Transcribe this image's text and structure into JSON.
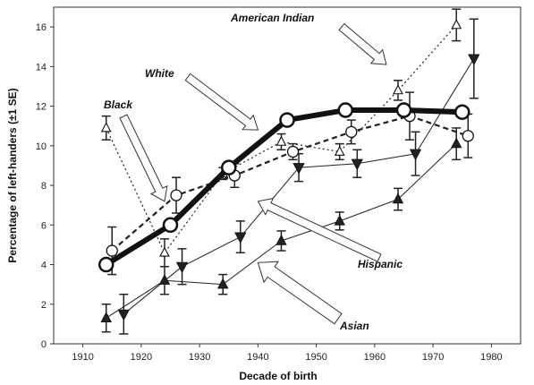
{
  "chart_data": {
    "type": "line",
    "xlabel": "Decade of birth",
    "ylabel": "Percentage of left-handers (±1 SE)",
    "xlim": [
      1905,
      1985
    ],
    "ylim": [
      0,
      17
    ],
    "x_ticks": [
      1910,
      1920,
      1930,
      1940,
      1950,
      1960,
      1970,
      1980
    ],
    "y_ticks": [
      0,
      2,
      4,
      6,
      8,
      10,
      12,
      14,
      16
    ],
    "grid": false,
    "legend": "none (series labelled by annotations with arrows)",
    "series": [
      {
        "name": "White",
        "style": "thick solid line, large open circles",
        "color": "#111111",
        "points": [
          {
            "x": 1914,
            "y": 4.0,
            "err": 0.2
          },
          {
            "x": 1925,
            "y": 6.0,
            "err": 0.2
          },
          {
            "x": 1935,
            "y": 8.9,
            "err": 0.2
          },
          {
            "x": 1945,
            "y": 11.3,
            "err": 0.15
          },
          {
            "x": 1955,
            "y": 11.8,
            "err": 0.15
          },
          {
            "x": 1965,
            "y": 11.8,
            "err": 0.15
          },
          {
            "x": 1975,
            "y": 11.7,
            "err": 0.2
          }
        ]
      },
      {
        "name": "Black",
        "style": "dashed line, open circles",
        "color": "#222222",
        "points": [
          {
            "x": 1915,
            "y": 4.7,
            "err": 1.2
          },
          {
            "x": 1926,
            "y": 7.5,
            "err": 0.9
          },
          {
            "x": 1936,
            "y": 8.5,
            "err": 0.6
          },
          {
            "x": 1946,
            "y": 9.7,
            "err": 0.4
          },
          {
            "x": 1956,
            "y": 10.7,
            "err": 0.6
          },
          {
            "x": 1966,
            "y": 11.5,
            "err": 1.2
          },
          {
            "x": 1976,
            "y": 10.5,
            "err": 1.1
          }
        ]
      },
      {
        "name": "American Indian",
        "style": "dotted line, open triangles",
        "color": "#222222",
        "points": [
          {
            "x": 1914,
            "y": 10.9,
            "err": 0.6
          },
          {
            "x": 1924,
            "y": 4.6,
            "err": 0.7
          },
          {
            "x": 1934,
            "y": 8.6,
            "err": 0.3
          },
          {
            "x": 1944,
            "y": 10.2,
            "err": 0.4
          },
          {
            "x": 1954,
            "y": 9.7,
            "err": 0.4
          },
          {
            "x": 1964,
            "y": 12.8,
            "err": 0.5
          },
          {
            "x": 1974,
            "y": 16.1,
            "err": 0.8
          }
        ]
      },
      {
        "name": "Hispanic",
        "style": "thin solid line, filled down-triangles",
        "color": "#222222",
        "points": [
          {
            "x": 1917,
            "y": 1.5,
            "err": 1.0
          },
          {
            "x": 1927,
            "y": 3.9,
            "err": 0.9
          },
          {
            "x": 1937,
            "y": 5.4,
            "err": 0.8
          },
          {
            "x": 1947,
            "y": 8.9,
            "err": 0.7
          },
          {
            "x": 1957,
            "y": 9.1,
            "err": 0.7
          },
          {
            "x": 1967,
            "y": 9.6,
            "err": 1.1
          },
          {
            "x": 1977,
            "y": 14.4,
            "err": 2.0
          }
        ]
      },
      {
        "name": "Asian",
        "style": "thin solid line, filled up-triangles",
        "color": "#222222",
        "points": [
          {
            "x": 1914,
            "y": 1.3,
            "err": 0.7
          },
          {
            "x": 1924,
            "y": 3.2,
            "err": 0.7
          },
          {
            "x": 1934,
            "y": 3.0,
            "err": 0.5
          },
          {
            "x": 1944,
            "y": 5.2,
            "err": 0.5
          },
          {
            "x": 1954,
            "y": 6.2,
            "err": 0.45
          },
          {
            "x": 1964,
            "y": 7.3,
            "err": 0.55
          },
          {
            "x": 1974,
            "y": 10.1,
            "err": 0.8
          }
        ]
      }
    ],
    "annotations": [
      {
        "text": "American Indian",
        "arrow_target": {
          "x": 1962,
          "y": 14.1
        }
      },
      {
        "text": "White",
        "arrow_target": {
          "x": 1940,
          "y": 10.8
        }
      },
      {
        "text": "Black",
        "arrow_target": {
          "x": 1924,
          "y": 7.2
        }
      },
      {
        "text": "Hispanic",
        "arrow_target": {
          "x": 1940,
          "y": 7.2
        }
      },
      {
        "text": "Asian",
        "arrow_target": {
          "x": 1940,
          "y": 4.1
        }
      }
    ]
  }
}
